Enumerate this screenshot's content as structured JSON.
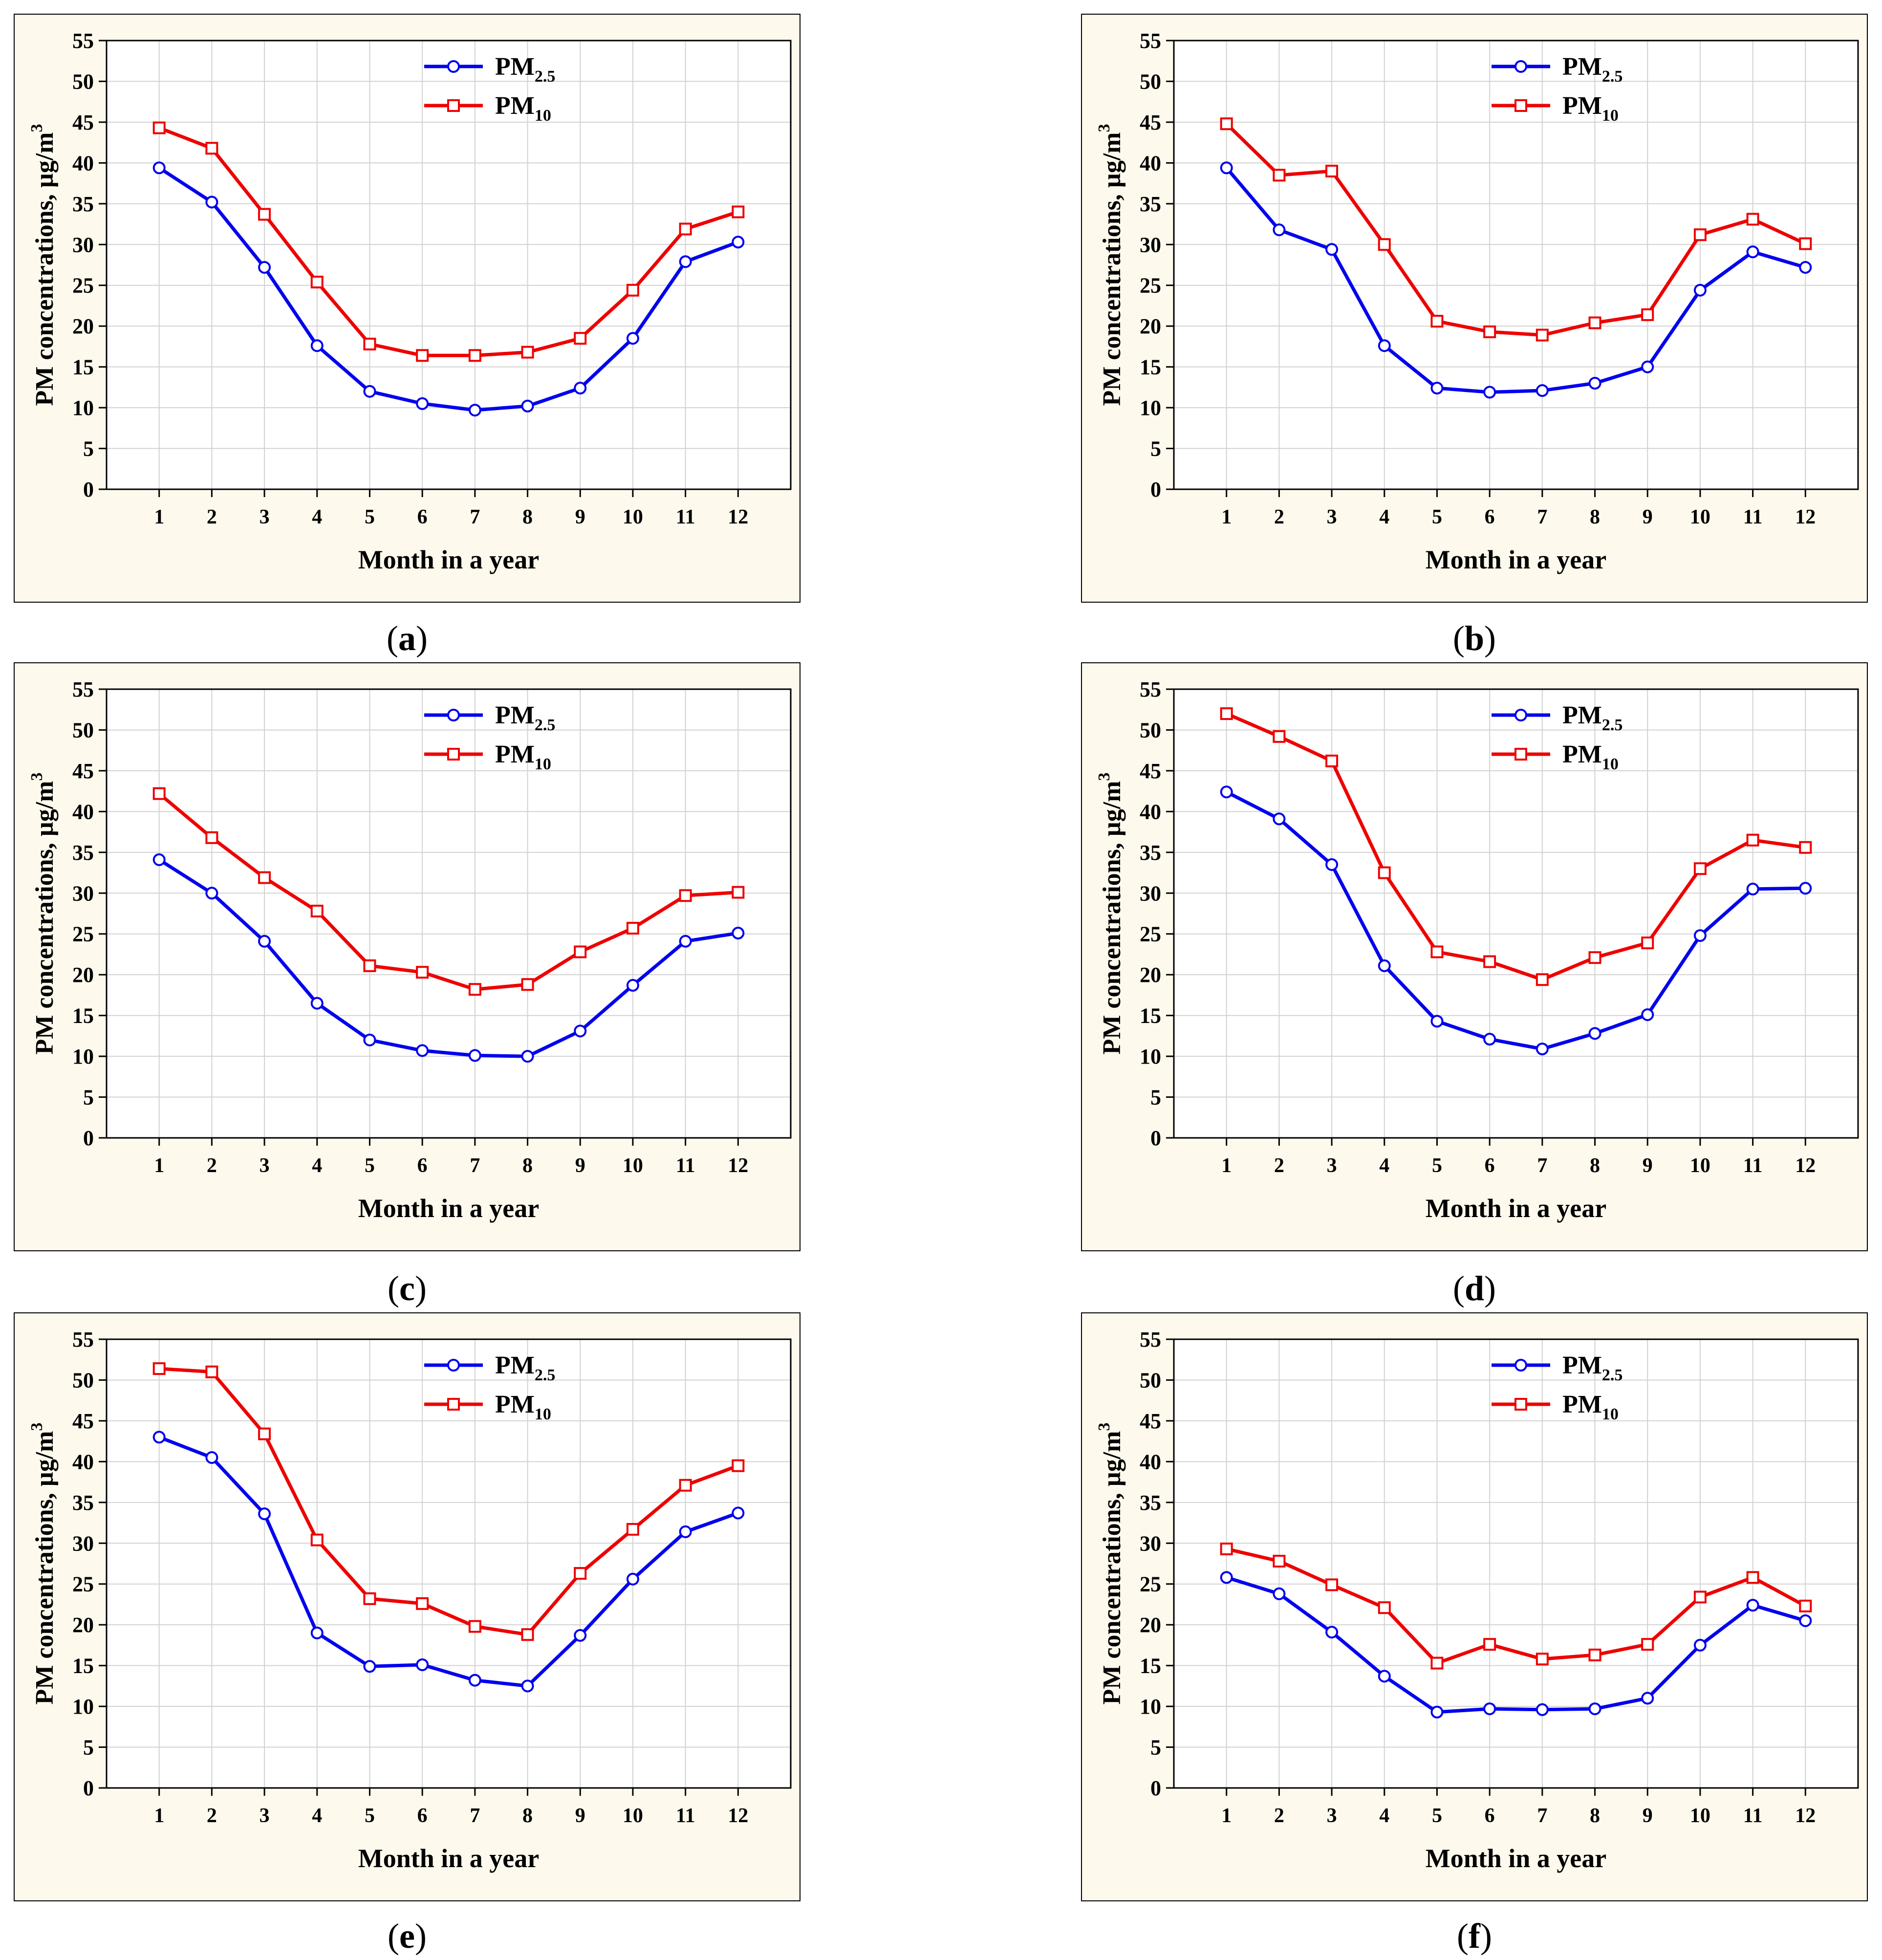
{
  "figure": {
    "colors": {
      "pm25": "#0000ee",
      "pm10": "#ee0000",
      "panel_bg": "#fdf9ec",
      "plot_bg": "#ffffff",
      "grid": "#d2d2d2"
    }
  },
  "chart_data": [
    {
      "type": "line",
      "panel_label": "a",
      "caption_open": "(",
      "caption_close": ")",
      "categories": [
        "1",
        "2",
        "3",
        "4",
        "5",
        "6",
        "7",
        "8",
        "9",
        "10",
        "11",
        "12"
      ],
      "series": [
        {
          "name": "PM",
          "sub": "2.5",
          "marker": "circle",
          "values": [
            39.4,
            35.2,
            27.2,
            17.6,
            12.0,
            10.5,
            9.7,
            10.2,
            12.4,
            18.5,
            27.9,
            30.3
          ]
        },
        {
          "name": "PM",
          "sub": "10",
          "marker": "square",
          "values": [
            44.3,
            41.8,
            33.7,
            25.4,
            17.8,
            16.4,
            16.4,
            16.8,
            18.5,
            24.4,
            31.9,
            34.0
          ]
        }
      ],
      "xlabel": "Month in a year",
      "ylabel": "PM concentrations, µg/m",
      "ylabel_sup": "3",
      "ylim": [
        0,
        55
      ],
      "yticks": [
        "0",
        "5",
        "10",
        "15",
        "20",
        "25",
        "30",
        "35",
        "40",
        "45",
        "50",
        "55"
      ],
      "grid": true,
      "legend": "top-center"
    },
    {
      "type": "line",
      "panel_label": "b",
      "caption_open": "(",
      "caption_close": ")",
      "categories": [
        "1",
        "2",
        "3",
        "4",
        "5",
        "6",
        "7",
        "8",
        "9",
        "10",
        "11",
        "12"
      ],
      "series": [
        {
          "name": "PM",
          "sub": "2.5",
          "marker": "circle",
          "values": [
            39.4,
            31.8,
            29.4,
            17.6,
            12.4,
            11.9,
            12.1,
            13.0,
            15.0,
            24.4,
            29.1,
            27.2
          ]
        },
        {
          "name": "PM",
          "sub": "10",
          "marker": "square",
          "values": [
            44.8,
            38.5,
            39.0,
            30.0,
            20.6,
            19.3,
            18.9,
            20.4,
            21.4,
            31.2,
            33.1,
            30.1
          ]
        }
      ],
      "xlabel": "Month in a year",
      "ylabel": "PM concentrations, µg/m",
      "ylabel_sup": "3",
      "ylim": [
        0,
        55
      ],
      "yticks": [
        "0",
        "5",
        "10",
        "15",
        "20",
        "25",
        "30",
        "35",
        "40",
        "45",
        "50",
        "55"
      ],
      "grid": true,
      "legend": "top-center"
    },
    {
      "type": "line",
      "panel_label": "c",
      "caption_open": "(",
      "caption_close": ")",
      "categories": [
        "1",
        "2",
        "3",
        "4",
        "5",
        "6",
        "7",
        "8",
        "9",
        "10",
        "11",
        "12"
      ],
      "series": [
        {
          "name": "PM",
          "sub": "2.5",
          "marker": "circle",
          "values": [
            34.1,
            30.0,
            24.1,
            16.5,
            12.0,
            10.7,
            10.1,
            10.0,
            13.1,
            18.7,
            24.1,
            25.1
          ]
        },
        {
          "name": "PM",
          "sub": "10",
          "marker": "square",
          "values": [
            42.2,
            36.8,
            31.9,
            27.8,
            21.1,
            20.3,
            18.2,
            18.8,
            22.8,
            25.7,
            29.7,
            30.1
          ]
        }
      ],
      "xlabel": "Month in a year",
      "ylabel": "PM concentrations, µg/m",
      "ylabel_sup": "3",
      "ylim": [
        0,
        55
      ],
      "yticks": [
        "0",
        "5",
        "10",
        "15",
        "20",
        "25",
        "30",
        "35",
        "40",
        "45",
        "50",
        "55"
      ],
      "grid": true,
      "legend": "top-center"
    },
    {
      "type": "line",
      "panel_label": "d",
      "caption_open": "(",
      "caption_close": ")",
      "categories": [
        "1",
        "2",
        "3",
        "4",
        "5",
        "6",
        "7",
        "8",
        "9",
        "10",
        "11",
        "12"
      ],
      "series": [
        {
          "name": "PM",
          "sub": "2.5",
          "marker": "circle",
          "values": [
            42.4,
            39.1,
            33.5,
            21.1,
            14.3,
            12.1,
            10.9,
            12.8,
            15.1,
            24.8,
            30.5,
            30.6
          ]
        },
        {
          "name": "PM",
          "sub": "10",
          "marker": "square",
          "values": [
            52.0,
            49.2,
            46.2,
            32.5,
            22.8,
            21.6,
            19.4,
            22.1,
            23.9,
            33.0,
            36.5,
            35.6
          ]
        }
      ],
      "xlabel": "Month in a year",
      "ylabel": "PM concentrations, µg/m",
      "ylabel_sup": "3",
      "ylim": [
        0,
        55
      ],
      "yticks": [
        "0",
        "5",
        "10",
        "15",
        "20",
        "25",
        "30",
        "35",
        "40",
        "45",
        "50",
        "55"
      ],
      "grid": true,
      "legend": "top-center"
    },
    {
      "type": "line",
      "panel_label": "e",
      "caption_open": "(",
      "caption_close": ")",
      "categories": [
        "1",
        "2",
        "3",
        "4",
        "5",
        "6",
        "7",
        "8",
        "9",
        "10",
        "11",
        "12"
      ],
      "series": [
        {
          "name": "PM",
          "sub": "2.5",
          "marker": "circle",
          "values": [
            43.0,
            40.5,
            33.6,
            19.0,
            14.9,
            15.1,
            13.2,
            12.5,
            18.7,
            25.6,
            31.4,
            33.7
          ]
        },
        {
          "name": "PM",
          "sub": "10",
          "marker": "square",
          "values": [
            51.4,
            51.0,
            43.4,
            30.4,
            23.2,
            22.6,
            19.8,
            18.8,
            26.3,
            31.7,
            37.1,
            39.5
          ]
        }
      ],
      "xlabel": "Month in a year",
      "ylabel": "PM concentrations, µg/m",
      "ylabel_sup": "3",
      "ylim": [
        0,
        55
      ],
      "yticks": [
        "0",
        "5",
        "10",
        "15",
        "20",
        "25",
        "30",
        "35",
        "40",
        "45",
        "50",
        "55"
      ],
      "grid": true,
      "legend": "top-center"
    },
    {
      "type": "line",
      "panel_label": "f",
      "caption_open": "(",
      "caption_close": ")",
      "categories": [
        "1",
        "2",
        "3",
        "4",
        "5",
        "6",
        "7",
        "8",
        "9",
        "10",
        "11",
        "12"
      ],
      "series": [
        {
          "name": "PM",
          "sub": "2.5",
          "marker": "circle",
          "values": [
            25.8,
            23.8,
            19.1,
            13.7,
            9.3,
            9.7,
            9.6,
            9.7,
            11.0,
            17.5,
            22.4,
            20.5
          ]
        },
        {
          "name": "PM",
          "sub": "10",
          "marker": "square",
          "values": [
            29.3,
            27.8,
            24.9,
            22.1,
            15.3,
            17.6,
            15.8,
            16.3,
            17.6,
            23.4,
            25.8,
            22.3
          ]
        }
      ],
      "xlabel": "Month in a year",
      "ylabel": "PM concentrations, µg/m",
      "ylabel_sup": "3",
      "ylim": [
        0,
        55
      ],
      "yticks": [
        "0",
        "5",
        "10",
        "15",
        "20",
        "25",
        "30",
        "35",
        "40",
        "45",
        "50",
        "55"
      ],
      "grid": true,
      "legend": "top-center"
    }
  ]
}
